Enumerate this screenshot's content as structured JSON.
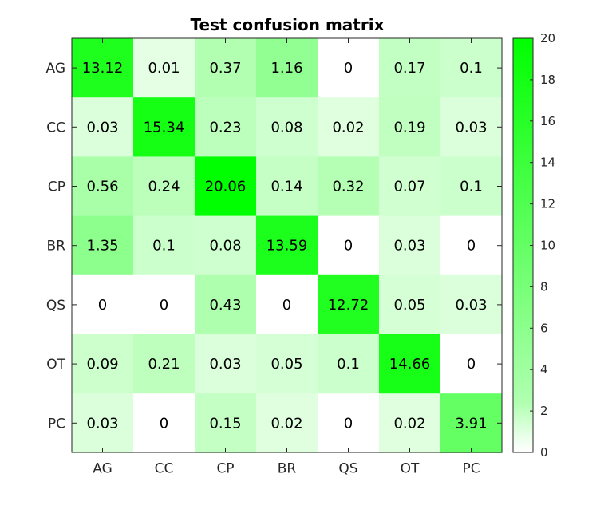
{
  "chart_data": {
    "type": "heatmap",
    "title": "Test confusion matrix",
    "xlabel": "",
    "ylabel": "",
    "x_categories": [
      "AG",
      "CC",
      "CP",
      "BR",
      "QS",
      "OT",
      "PC"
    ],
    "y_categories": [
      "AG",
      "CC",
      "CP",
      "BR",
      "QS",
      "OT",
      "PC"
    ],
    "values": [
      [
        13.12,
        0.01,
        0.37,
        1.16,
        0,
        0.17,
        0.1
      ],
      [
        0.03,
        15.34,
        0.23,
        0.08,
        0.02,
        0.19,
        0.03
      ],
      [
        0.56,
        0.24,
        20.06,
        0.14,
        0.32,
        0.07,
        0.1
      ],
      [
        1.35,
        0.1,
        0.08,
        13.59,
        0,
        0.03,
        0
      ],
      [
        0,
        0,
        0.43,
        0,
        12.72,
        0.05,
        0.03
      ],
      [
        0.09,
        0.21,
        0.03,
        0.05,
        0.1,
        14.66,
        0
      ],
      [
        0.03,
        0,
        0.15,
        0.02,
        0,
        0.02,
        3.91
      ]
    ],
    "value_labels": [
      [
        "13.12",
        "0.01",
        "0.37",
        "1.16",
        "0",
        "0.17",
        "0.1"
      ],
      [
        "0.03",
        "15.34",
        "0.23",
        "0.08",
        "0.02",
        "0.19",
        "0.03"
      ],
      [
        "0.56",
        "0.24",
        "20.06",
        "0.14",
        "0.32",
        "0.07",
        "0.1"
      ],
      [
        "1.35",
        "0.1",
        "0.08",
        "13.59",
        "0",
        "0.03",
        "0"
      ],
      [
        "0",
        "0",
        "0.43",
        "0",
        "12.72",
        "0.05",
        "0.03"
      ],
      [
        "0.09",
        "0.21",
        "0.03",
        "0.05",
        "0.1",
        "14.66",
        "0"
      ],
      [
        "0.03",
        "0",
        "0.15",
        "0.02",
        "0",
        "0.02",
        "3.91"
      ]
    ],
    "colorbar": {
      "range": [
        0,
        20
      ],
      "ticks": [
        "0",
        "2",
        "4",
        "6",
        "8",
        "10",
        "12",
        "14",
        "16",
        "18",
        "20"
      ],
      "color_low": "#ffffff",
      "color_high": "#00ff00"
    },
    "grid": false,
    "legend": "colorbar-right"
  }
}
